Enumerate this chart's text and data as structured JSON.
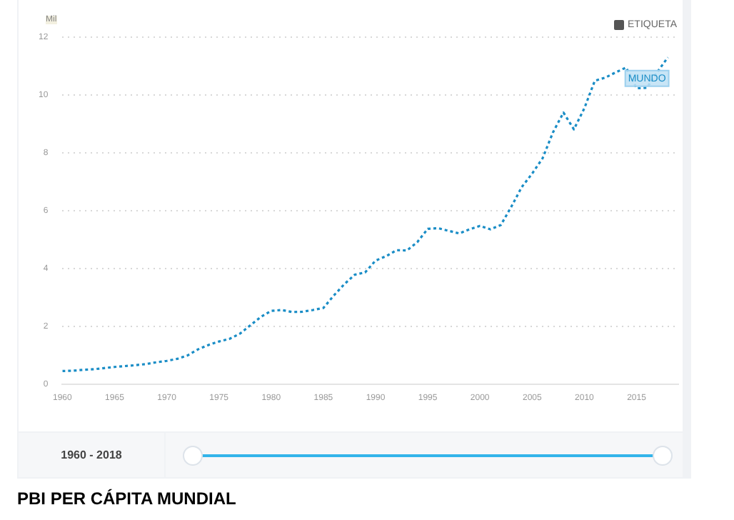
{
  "chart_data": {
    "type": "line",
    "title": "PBI PER CÁPITA MUNDIAL",
    "ylabel": "Mil",
    "annotations": [
      "ETIQUETA",
      "1960 - 2018"
    ],
    "x": [
      1960,
      1961,
      1962,
      1963,
      1964,
      1965,
      1966,
      1967,
      1968,
      1969,
      1970,
      1971,
      1972,
      1973,
      1974,
      1975,
      1976,
      1977,
      1978,
      1979,
      1980,
      1981,
      1982,
      1983,
      1984,
      1985,
      1986,
      1987,
      1988,
      1989,
      1990,
      1991,
      1992,
      1993,
      1994,
      1995,
      1996,
      1997,
      1998,
      1999,
      2000,
      2001,
      2002,
      2003,
      2004,
      2005,
      2006,
      2007,
      2008,
      2009,
      2010,
      2011,
      2012,
      2013,
      2014,
      2015,
      2016,
      2017,
      2018
    ],
    "series": [
      {
        "name": "MUNDO",
        "color": "#1a8dc6",
        "values": [
          0.45,
          0.46,
          0.49,
          0.51,
          0.55,
          0.59,
          0.62,
          0.65,
          0.69,
          0.75,
          0.8,
          0.87,
          0.99,
          1.2,
          1.35,
          1.47,
          1.56,
          1.74,
          2.03,
          2.32,
          2.53,
          2.56,
          2.49,
          2.5,
          2.56,
          2.63,
          3.06,
          3.45,
          3.78,
          3.86,
          4.27,
          4.42,
          4.63,
          4.62,
          4.91,
          5.37,
          5.39,
          5.3,
          5.21,
          5.35,
          5.47,
          5.35,
          5.5,
          6.13,
          6.81,
          7.28,
          7.81,
          8.71,
          9.39,
          8.81,
          9.54,
          10.49,
          10.6,
          10.78,
          10.95,
          10.23,
          10.25,
          10.8,
          11.3
        ]
      }
    ],
    "xlim": [
      1960,
      2019
    ],
    "xticks": [
      1960,
      1965,
      1970,
      1975,
      1980,
      1985,
      1990,
      1995,
      2000,
      2005,
      2010,
      2015
    ],
    "ylim": [
      0,
      12
    ],
    "yticks": [
      0,
      2,
      4,
      6,
      8,
      10,
      12
    ],
    "grid": "y",
    "legend": false,
    "marker": "none",
    "line_style": "dotted"
  }
}
